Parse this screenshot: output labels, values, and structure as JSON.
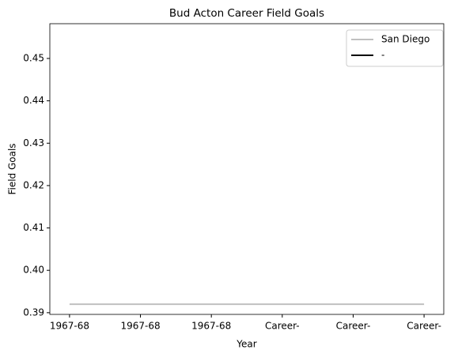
{
  "chart_data": {
    "type": "line",
    "title": "Bud Acton Career Field Goals",
    "xlabel": "Year",
    "ylabel": "Field Goals",
    "categories": [
      "1967-68",
      "1967-68",
      "1967-68",
      "Career-",
      "Career-",
      "Career-"
    ],
    "series": [
      {
        "name": "San Diego",
        "color": "#c0c0c0",
        "values": [
          0.392,
          0.392,
          0.392,
          0.392,
          0.392,
          0.392
        ]
      },
      {
        "name": "-",
        "color": "#000000",
        "values": [
          null,
          null,
          null,
          null,
          null,
          null
        ]
      }
    ],
    "ylim": [
      0.3896,
      0.4582
    ],
    "yticks": [
      0.39,
      {
        "value": 0.4,
        "label": "0.40"
      },
      0.41,
      0.42,
      0.43,
      0.44,
      0.45
    ],
    "legend": "upper right"
  }
}
